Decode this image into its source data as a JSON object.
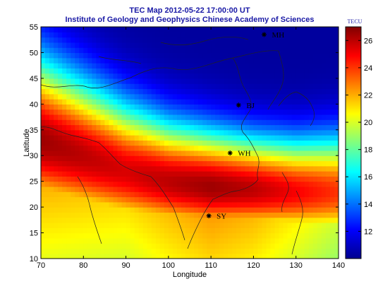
{
  "chart_data": {
    "type": "heatmap",
    "title": "TEC Map 2012-05-22 17:00:00 UT",
    "subtitle": "Institute of Geology and Geophysics Chinese Academy of Sciences",
    "xlabel": "Longitude",
    "ylabel": "Latitude",
    "xlim": [
      70,
      140
    ],
    "ylim": [
      10,
      55
    ],
    "xticks": [
      70,
      80,
      90,
      100,
      110,
      120,
      130,
      140
    ],
    "yticks": [
      10,
      15,
      20,
      25,
      30,
      35,
      40,
      45,
      50,
      55
    ],
    "colorbar": {
      "unit": "TECU",
      "range": [
        10,
        27
      ],
      "ticks": [
        12,
        14,
        16,
        18,
        20,
        22,
        24,
        26
      ]
    },
    "stations": [
      {
        "label": "MH",
        "lon": 122.5,
        "lat": 53.5
      },
      {
        "label": "BJ",
        "lon": 116.5,
        "lat": 39.8
      },
      {
        "label": "WH",
        "lon": 114.5,
        "lat": 30.5
      },
      {
        "label": "SY",
        "lon": 109.5,
        "lat": 18.3
      }
    ],
    "tec_profile": {
      "longitude_nodes": [
        70,
        80,
        90,
        100,
        110,
        120,
        130,
        140
      ],
      "band_center_lat": [
        33,
        30,
        27,
        25,
        24,
        23.5,
        23,
        23
      ],
      "band_halfwidth": [
        11,
        10,
        9,
        8,
        7.5,
        7,
        7,
        7.5
      ],
      "peak_tec": [
        26.5,
        26,
        25.5,
        26,
        26.5,
        26,
        25,
        24
      ]
    }
  }
}
